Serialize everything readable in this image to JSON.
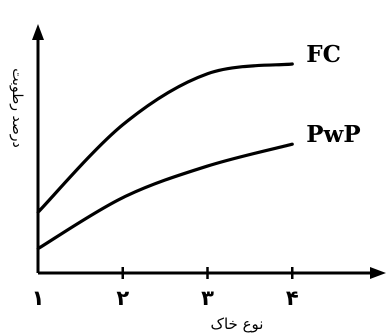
{
  "chart_data": {
    "type": "line",
    "xlabel": "نوع خاک",
    "ylabel": "درصد رطوبت",
    "x_tick_labels": [
      "۱",
      "۲",
      "۳",
      "۴"
    ],
    "x": [
      1,
      2,
      3,
      4
    ],
    "xlim": [
      1,
      5
    ],
    "ylim": [
      0,
      100
    ],
    "grid": false,
    "series": [
      {
        "name": "FC",
        "values": [
          25,
          61,
          82,
          86
        ]
      },
      {
        "name": "PwP",
        "values": [
          10,
          31,
          44,
          53
        ]
      }
    ]
  }
}
